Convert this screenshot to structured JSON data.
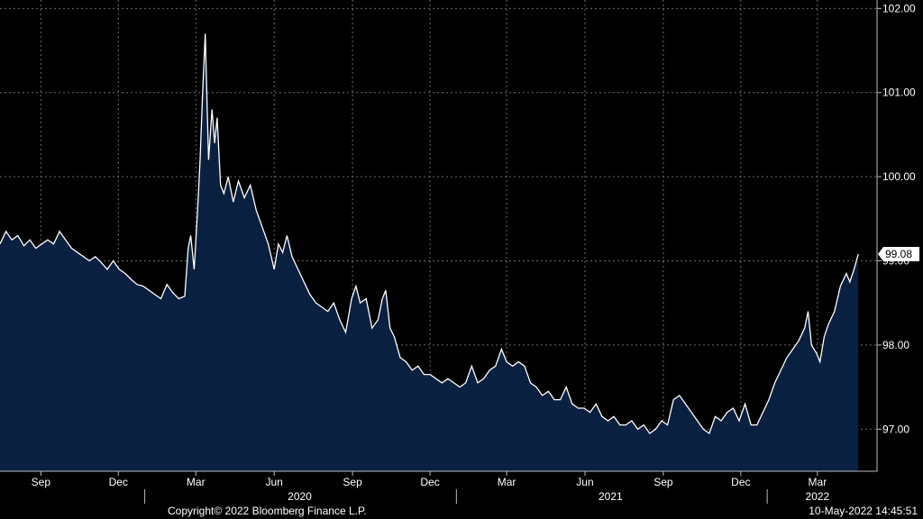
{
  "chart_data": {
    "type": "area",
    "ylim": [
      96.5,
      102.1
    ],
    "y_ticks": [
      "102.00",
      "101.00",
      "100.00",
      "99.00",
      "98.00",
      "97.00"
    ],
    "y_tick_values": [
      102,
      101,
      100,
      99,
      98,
      97
    ],
    "x_range": [
      "2019-07-15",
      "2022-05-10"
    ],
    "month_ticks": [
      {
        "label": "Sep",
        "date": "2019-09-01"
      },
      {
        "label": "Dec",
        "date": "2019-12-01"
      },
      {
        "label": "Mar",
        "date": "2020-03-01"
      },
      {
        "label": "Jun",
        "date": "2020-06-01"
      },
      {
        "label": "Sep",
        "date": "2020-09-01"
      },
      {
        "label": "Dec",
        "date": "2020-12-01"
      },
      {
        "label": "Mar",
        "date": "2021-03-01"
      },
      {
        "label": "Jun",
        "date": "2021-06-01"
      },
      {
        "label": "Sep",
        "date": "2021-09-01"
      },
      {
        "label": "Dec",
        "date": "2021-12-01"
      },
      {
        "label": "Mar",
        "date": "2022-03-01"
      }
    ],
    "year_labels": [
      {
        "label": "2020",
        "date": "2020-07-01"
      },
      {
        "label": "2021",
        "date": "2021-07-01"
      },
      {
        "label": "2022",
        "date": "2022-03-01"
      }
    ],
    "year_separators": [
      "2020-01-01",
      "2021-01-01",
      "2022-01-01"
    ],
    "last_value_label": "99.08",
    "grid": true,
    "colors": {
      "line": "#ffffff",
      "fill": "#0a2040",
      "grid": "#6a6a6a",
      "background": "#000000"
    },
    "series": [
      {
        "points": [
          [
            "2019-07-15",
            99.2
          ],
          [
            "2019-07-22",
            99.35
          ],
          [
            "2019-07-29",
            99.25
          ],
          [
            "2019-08-05",
            99.3
          ],
          [
            "2019-08-12",
            99.18
          ],
          [
            "2019-08-19",
            99.25
          ],
          [
            "2019-08-26",
            99.15
          ],
          [
            "2019-09-02",
            99.2
          ],
          [
            "2019-09-09",
            99.25
          ],
          [
            "2019-09-16",
            99.2
          ],
          [
            "2019-09-23",
            99.35
          ],
          [
            "2019-09-30",
            99.25
          ],
          [
            "2019-10-07",
            99.15
          ],
          [
            "2019-10-14",
            99.1
          ],
          [
            "2019-10-21",
            99.05
          ],
          [
            "2019-10-28",
            99.0
          ],
          [
            "2019-11-04",
            99.05
          ],
          [
            "2019-11-11",
            98.98
          ],
          [
            "2019-11-18",
            98.9
          ],
          [
            "2019-11-25",
            99.0
          ],
          [
            "2019-12-02",
            98.9
          ],
          [
            "2019-12-09",
            98.85
          ],
          [
            "2019-12-16",
            98.78
          ],
          [
            "2019-12-23",
            98.72
          ],
          [
            "2019-12-30",
            98.7
          ],
          [
            "2020-01-06",
            98.65
          ],
          [
            "2020-01-13",
            98.6
          ],
          [
            "2020-01-20",
            98.55
          ],
          [
            "2020-01-27",
            98.72
          ],
          [
            "2020-02-03",
            98.62
          ],
          [
            "2020-02-10",
            98.55
          ],
          [
            "2020-02-17",
            98.58
          ],
          [
            "2020-02-21",
            99.15
          ],
          [
            "2020-02-24",
            99.3
          ],
          [
            "2020-02-28",
            98.9
          ],
          [
            "2020-03-03",
            99.6
          ],
          [
            "2020-03-06",
            100.2
          ],
          [
            "2020-03-09",
            101.0
          ],
          [
            "2020-03-12",
            101.7
          ],
          [
            "2020-03-16",
            100.2
          ],
          [
            "2020-03-20",
            100.8
          ],
          [
            "2020-03-23",
            100.4
          ],
          [
            "2020-03-26",
            100.7
          ],
          [
            "2020-03-30",
            99.9
          ],
          [
            "2020-04-03",
            99.8
          ],
          [
            "2020-04-08",
            100.0
          ],
          [
            "2020-04-14",
            99.7
          ],
          [
            "2020-04-20",
            99.95
          ],
          [
            "2020-04-27",
            99.75
          ],
          [
            "2020-05-04",
            99.9
          ],
          [
            "2020-05-11",
            99.6
          ],
          [
            "2020-05-18",
            99.4
          ],
          [
            "2020-05-25",
            99.2
          ],
          [
            "2020-06-01",
            98.9
          ],
          [
            "2020-06-06",
            99.2
          ],
          [
            "2020-06-11",
            99.1
          ],
          [
            "2020-06-16",
            99.3
          ],
          [
            "2020-06-22",
            99.05
          ],
          [
            "2020-06-29",
            98.9
          ],
          [
            "2020-07-06",
            98.75
          ],
          [
            "2020-07-13",
            98.6
          ],
          [
            "2020-07-20",
            98.5
          ],
          [
            "2020-07-27",
            98.45
          ],
          [
            "2020-08-03",
            98.4
          ],
          [
            "2020-08-10",
            98.5
          ],
          [
            "2020-08-17",
            98.3
          ],
          [
            "2020-08-24",
            98.15
          ],
          [
            "2020-08-31",
            98.55
          ],
          [
            "2020-09-05",
            98.7
          ],
          [
            "2020-09-10",
            98.5
          ],
          [
            "2020-09-17",
            98.55
          ],
          [
            "2020-09-24",
            98.2
          ],
          [
            "2020-10-01",
            98.3
          ],
          [
            "2020-10-06",
            98.55
          ],
          [
            "2020-10-10",
            98.65
          ],
          [
            "2020-10-15",
            98.2
          ],
          [
            "2020-10-20",
            98.1
          ],
          [
            "2020-10-27",
            97.85
          ],
          [
            "2020-11-03",
            97.8
          ],
          [
            "2020-11-10",
            97.7
          ],
          [
            "2020-11-17",
            97.75
          ],
          [
            "2020-11-24",
            97.65
          ],
          [
            "2020-12-01",
            97.65
          ],
          [
            "2020-12-08",
            97.6
          ],
          [
            "2020-12-15",
            97.55
          ],
          [
            "2020-12-22",
            97.6
          ],
          [
            "2020-12-29",
            97.55
          ],
          [
            "2021-01-05",
            97.5
          ],
          [
            "2021-01-12",
            97.55
          ],
          [
            "2021-01-19",
            97.75
          ],
          [
            "2021-01-26",
            97.55
          ],
          [
            "2021-02-02",
            97.6
          ],
          [
            "2021-02-09",
            97.7
          ],
          [
            "2021-02-16",
            97.75
          ],
          [
            "2021-02-23",
            97.95
          ],
          [
            "2021-03-01",
            97.8
          ],
          [
            "2021-03-08",
            97.75
          ],
          [
            "2021-03-15",
            97.8
          ],
          [
            "2021-03-22",
            97.75
          ],
          [
            "2021-03-29",
            97.55
          ],
          [
            "2021-04-05",
            97.5
          ],
          [
            "2021-04-12",
            97.4
          ],
          [
            "2021-04-19",
            97.45
          ],
          [
            "2021-04-26",
            97.35
          ],
          [
            "2021-05-03",
            97.35
          ],
          [
            "2021-05-10",
            97.5
          ],
          [
            "2021-05-17",
            97.3
          ],
          [
            "2021-05-24",
            97.25
          ],
          [
            "2021-05-31",
            97.25
          ],
          [
            "2021-06-07",
            97.2
          ],
          [
            "2021-06-14",
            97.3
          ],
          [
            "2021-06-21",
            97.15
          ],
          [
            "2021-06-28",
            97.1
          ],
          [
            "2021-07-05",
            97.15
          ],
          [
            "2021-07-12",
            97.05
          ],
          [
            "2021-07-19",
            97.05
          ],
          [
            "2021-07-26",
            97.1
          ],
          [
            "2021-08-02",
            97.0
          ],
          [
            "2021-08-09",
            97.05
          ],
          [
            "2021-08-16",
            96.95
          ],
          [
            "2021-08-23",
            97.0
          ],
          [
            "2021-08-30",
            97.1
          ],
          [
            "2021-09-06",
            97.05
          ],
          [
            "2021-09-13",
            97.35
          ],
          [
            "2021-09-20",
            97.4
          ],
          [
            "2021-09-27",
            97.3
          ],
          [
            "2021-10-04",
            97.2
          ],
          [
            "2021-10-11",
            97.1
          ],
          [
            "2021-10-18",
            97.0
          ],
          [
            "2021-10-25",
            96.95
          ],
          [
            "2021-11-01",
            97.15
          ],
          [
            "2021-11-08",
            97.1
          ],
          [
            "2021-11-15",
            97.2
          ],
          [
            "2021-11-22",
            97.25
          ],
          [
            "2021-11-29",
            97.1
          ],
          [
            "2021-12-06",
            97.3
          ],
          [
            "2021-12-13",
            97.05
          ],
          [
            "2021-12-20",
            97.05
          ],
          [
            "2021-12-27",
            97.2
          ],
          [
            "2022-01-03",
            97.35
          ],
          [
            "2022-01-10",
            97.55
          ],
          [
            "2022-01-17",
            97.7
          ],
          [
            "2022-01-24",
            97.85
          ],
          [
            "2022-01-31",
            97.95
          ],
          [
            "2022-02-07",
            98.05
          ],
          [
            "2022-02-14",
            98.2
          ],
          [
            "2022-02-18",
            98.4
          ],
          [
            "2022-02-22",
            98.0
          ],
          [
            "2022-02-28",
            97.9
          ],
          [
            "2022-03-04",
            97.8
          ],
          [
            "2022-03-09",
            98.1
          ],
          [
            "2022-03-14",
            98.25
          ],
          [
            "2022-03-21",
            98.4
          ],
          [
            "2022-03-28",
            98.7
          ],
          [
            "2022-04-04",
            98.85
          ],
          [
            "2022-04-08",
            98.75
          ],
          [
            "2022-04-13",
            98.9
          ],
          [
            "2022-04-18",
            99.08
          ]
        ]
      }
    ]
  },
  "footer": {
    "copyright": "Copyright© 2022 Bloomberg Finance L.P.",
    "timestamp": "10-May-2022 14:45:51"
  }
}
